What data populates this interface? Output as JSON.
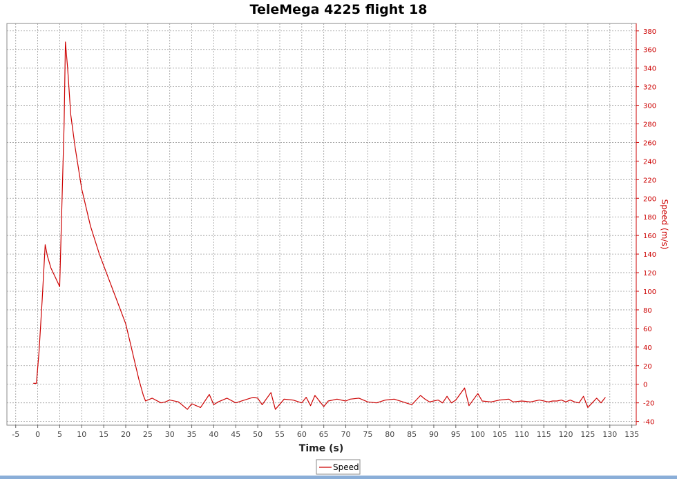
{
  "chart_data": {
    "type": "line",
    "title": "TeleMega 4225 flight 18",
    "xlabel": "Time (s)",
    "ylabel": "Speed (m/s)",
    "xlim": [
      -7,
      136
    ],
    "ylim": [
      -44,
      388
    ],
    "x_ticks": [
      -5,
      0,
      5,
      10,
      15,
      20,
      25,
      30,
      35,
      40,
      45,
      50,
      55,
      60,
      65,
      70,
      75,
      80,
      85,
      90,
      95,
      100,
      105,
      110,
      115,
      120,
      125,
      130,
      135
    ],
    "y_ticks": [
      -40,
      -20,
      0,
      20,
      40,
      60,
      80,
      100,
      120,
      140,
      160,
      180,
      200,
      220,
      240,
      260,
      280,
      300,
      320,
      340,
      360,
      380
    ],
    "grid": true,
    "legend_position": "bottom-center",
    "series": [
      {
        "name": "Speed",
        "color": "#cc0000",
        "x": [
          -1,
          -0.3,
          0.3,
          1,
          1.7,
          2.2,
          3,
          4,
          5,
          5.3,
          6,
          6.3,
          6.8,
          7.5,
          8.5,
          10,
          12,
          14,
          16,
          18,
          20,
          21,
          22,
          23,
          24,
          24.5,
          26,
          28,
          29,
          30,
          32,
          34,
          35,
          37,
          39,
          40,
          41,
          43,
          45,
          47,
          49,
          50,
          51,
          53,
          54,
          56,
          58,
          60,
          61,
          62,
          63,
          65,
          66,
          68,
          70,
          71,
          73,
          75,
          77,
          79,
          81,
          83,
          85,
          87,
          88,
          89,
          91,
          92,
          93,
          94,
          95,
          97,
          98,
          100,
          101,
          103,
          105,
          107,
          108,
          110,
          112,
          114,
          116,
          117,
          118,
          119,
          120,
          121,
          122,
          123,
          124,
          125,
          126,
          127,
          128,
          129
        ],
        "y": [
          1,
          1,
          35,
          90,
          150,
          138,
          125,
          115,
          105,
          160,
          280,
          368,
          340,
          290,
          255,
          210,
          170,
          140,
          115,
          90,
          65,
          45,
          25,
          5,
          -12,
          -18,
          -15,
          -20,
          -19,
          -17,
          -19,
          -27,
          -21,
          -25,
          -11,
          -22,
          -19,
          -15,
          -20,
          -17,
          -14,
          -15,
          -22,
          -9,
          -27,
          -16,
          -17,
          -20,
          -14,
          -23,
          -12,
          -24,
          -18,
          -16,
          -18,
          -16,
          -15,
          -19,
          -20,
          -17,
          -16,
          -19,
          -22,
          -12,
          -16,
          -19,
          -17,
          -20,
          -13,
          -20,
          -17,
          -4,
          -23,
          -10,
          -18,
          -19,
          -17,
          -16,
          -19,
          -18,
          -19,
          -17,
          -19,
          -18,
          -18,
          -17,
          -19,
          -17,
          -19,
          -20,
          -13,
          -25,
          -20,
          -15,
          -20,
          -14
        ]
      }
    ]
  }
}
